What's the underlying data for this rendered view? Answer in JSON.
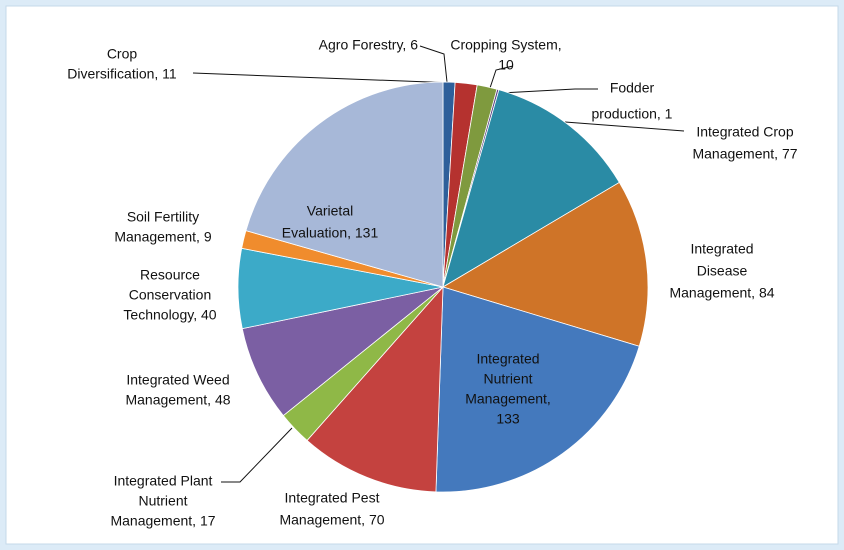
{
  "chart_data": {
    "type": "pie",
    "labels": [
      [
        "Agro Forestry, 6"
      ],
      [
        "Crop",
        "Diversification, 11"
      ],
      [
        "Cropping System,",
        "10"
      ],
      [
        "Fodder",
        "production, 1"
      ],
      [
        "Integrated Crop",
        "Management, 77"
      ],
      [
        "Integrated",
        "Disease",
        "Management, 84"
      ],
      [
        "Integrated",
        "Nutrient",
        "Management,",
        "133"
      ],
      [
        "Integrated Pest",
        "Management, 70"
      ],
      [
        "Integrated Plant",
        "Nutrient",
        "Management, 17"
      ],
      [
        "Integrated Weed",
        "Management, 48"
      ],
      [
        "Resource",
        "Conservation",
        "Technology, 40"
      ],
      [
        "Soil Fertility",
        "Management, 9"
      ],
      [
        "Varietal",
        "Evaluation, 131"
      ]
    ],
    "values": [
      6,
      11,
      10,
      1,
      77,
      84,
      133,
      70,
      17,
      48,
      40,
      9,
      131
    ],
    "colors": [
      "#2e5f9a",
      "#b5322f",
      "#7f9a3e",
      "#5a3f7f",
      "#2a8ba5",
      "#cf7428",
      "#4479bd",
      "#c4423f",
      "#8fb847",
      "#7b5fa3",
      "#3caac8",
      "#f08c2d",
      "#a7b8d8"
    ]
  }
}
